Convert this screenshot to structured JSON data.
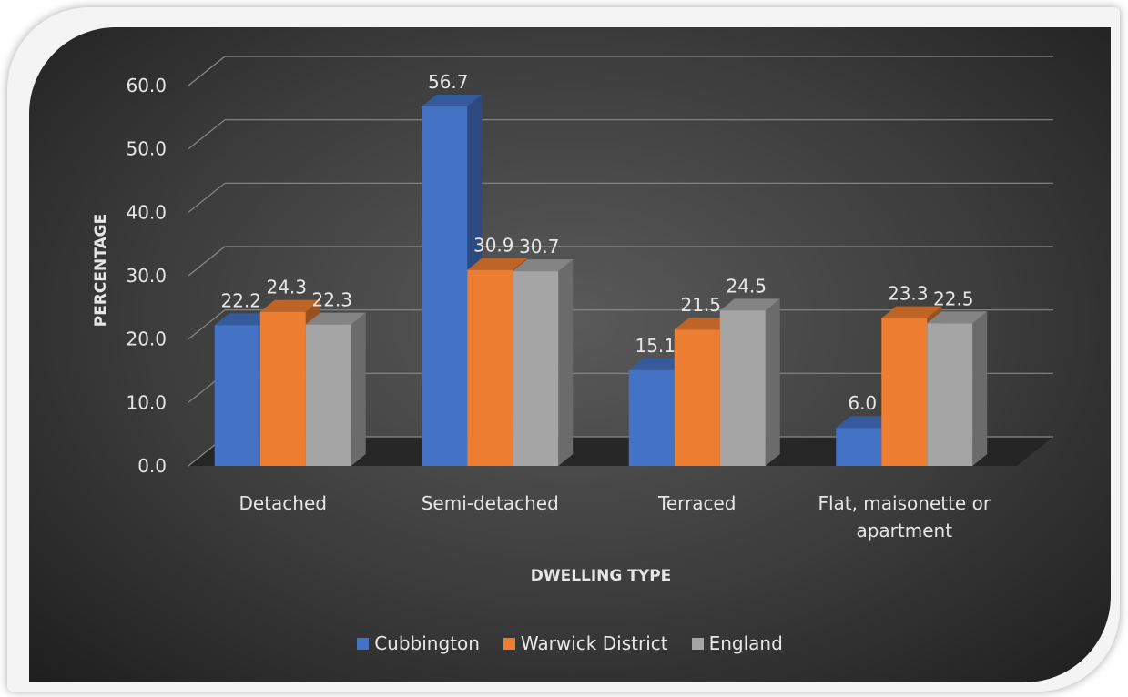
{
  "chart_data": {
    "type": "bar",
    "title": "",
    "xlabel": "DWELLING TYPE",
    "ylabel": "PERCENTAGE",
    "ylim": [
      0,
      60
    ],
    "yticks": [
      "0.0",
      "10.0",
      "20.0",
      "30.0",
      "40.0",
      "50.0",
      "60.0"
    ],
    "categories": [
      "Detached",
      "Semi-detached",
      "Terraced",
      "Flat, maisonette or apartment"
    ],
    "category_lines": [
      [
        "Detached"
      ],
      [
        "Semi-detached"
      ],
      [
        "Terraced"
      ],
      [
        "Flat, maisonette or",
        "apartment"
      ]
    ],
    "series": [
      {
        "name": "Cubbington",
        "color": "#4472c4",
        "values": [
          22.2,
          56.7,
          15.1,
          6.0
        ],
        "labels": [
          "22.2",
          "56.7",
          "15.1",
          "6.0"
        ]
      },
      {
        "name": "Warwick District",
        "color": "#ed7d31",
        "values": [
          24.3,
          30.9,
          21.5,
          23.3
        ],
        "labels": [
          "24.3",
          "30.9",
          "21.5",
          "23.3"
        ]
      },
      {
        "name": "England",
        "color": "#a5a5a5",
        "values": [
          22.3,
          30.7,
          24.5,
          22.5
        ],
        "labels": [
          "22.3",
          "30.7",
          "24.5",
          "22.5"
        ]
      }
    ],
    "grid": true,
    "legend_position": "bottom",
    "chart_style": "3d-clustered-column"
  }
}
